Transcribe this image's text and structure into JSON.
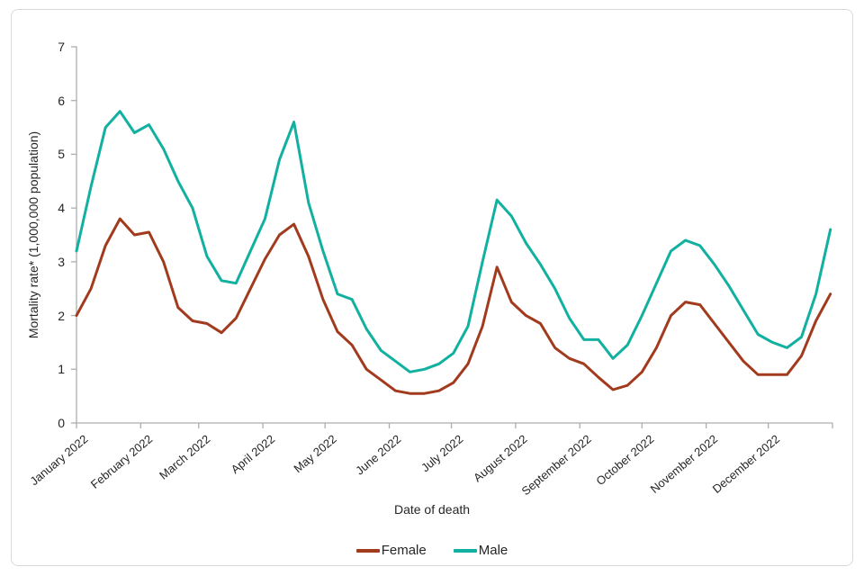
{
  "chart_data": {
    "type": "line",
    "title": "",
    "xlabel": "Date of death",
    "ylabel": "Mortality rate* (1,000,000 population)",
    "ylim": [
      0,
      7
    ],
    "y_ticks": [
      0,
      1,
      2,
      3,
      4,
      5,
      6,
      7
    ],
    "grid": false,
    "legend_position": "bottom-center",
    "x_axis": {
      "unit": "day of year 2022",
      "range_days": [
        0,
        365
      ],
      "tick_labels": [
        "January 2022",
        "February 2022",
        "March 2022",
        "April 2022",
        "May 2022",
        "June 2022",
        "July 2022",
        "August 2022",
        "September 2022",
        "October 2022",
        "November 2022",
        "December 2022"
      ],
      "tick_days": [
        0,
        31,
        59,
        90,
        120,
        151,
        181,
        212,
        243,
        273,
        304,
        334
      ]
    },
    "x_days": [
      0,
      7,
      14,
      21,
      28,
      35,
      42,
      49,
      56,
      63,
      70,
      77,
      84,
      91,
      98,
      105,
      112,
      119,
      126,
      133,
      140,
      147,
      154,
      161,
      168,
      175,
      182,
      189,
      196,
      203,
      210,
      217,
      224,
      231,
      238,
      245,
      252,
      259,
      266,
      273,
      280,
      287,
      294,
      301,
      308,
      315,
      322,
      329,
      336,
      343,
      350,
      357,
      364
    ],
    "series": [
      {
        "name": "Female",
        "color": "#A23B1E",
        "values": [
          2.0,
          2.5,
          3.3,
          3.8,
          3.5,
          3.55,
          3.0,
          2.15,
          1.9,
          1.85,
          1.68,
          1.95,
          2.5,
          3.05,
          3.5,
          3.7,
          3.1,
          2.3,
          1.7,
          1.45,
          1.0,
          0.8,
          0.6,
          0.55,
          0.55,
          0.6,
          0.75,
          1.1,
          1.8,
          2.9,
          2.25,
          2.0,
          1.85,
          1.4,
          1.2,
          1.1,
          0.85,
          0.62,
          0.7,
          0.95,
          1.4,
          2.0,
          2.25,
          2.2,
          1.85,
          1.5,
          1.15,
          0.9,
          0.9,
          0.9,
          1.25,
          1.9,
          2.4
        ]
      },
      {
        "name": "Male",
        "color": "#12B0A0",
        "values": [
          3.2,
          4.4,
          5.5,
          5.8,
          5.4,
          5.55,
          5.1,
          4.5,
          4.0,
          3.1,
          2.65,
          2.6,
          3.2,
          3.8,
          4.9,
          5.6,
          4.1,
          3.2,
          2.4,
          2.3,
          1.75,
          1.35,
          1.15,
          0.95,
          1.0,
          1.1,
          1.3,
          1.8,
          3.0,
          4.15,
          3.85,
          3.35,
          2.95,
          2.5,
          1.95,
          1.55,
          1.55,
          1.2,
          1.45,
          2.0,
          2.6,
          3.2,
          3.4,
          3.3,
          2.95,
          2.55,
          2.1,
          1.65,
          1.5,
          1.4,
          1.6,
          2.4,
          3.6
        ]
      }
    ]
  },
  "colors": {
    "axis": "#ADADAD",
    "text": "#262626",
    "border": "#D9D9D9",
    "background": "#FFFFFF"
  }
}
